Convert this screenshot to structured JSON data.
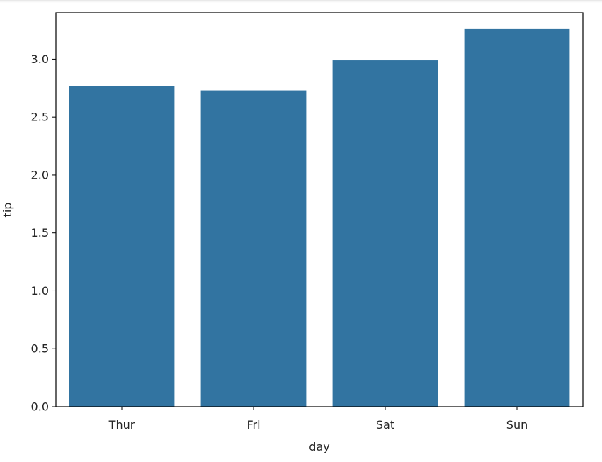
{
  "chart_data": {
    "type": "bar",
    "categories": [
      "Thur",
      "Fri",
      "Sat",
      "Sun"
    ],
    "values": [
      2.77,
      2.73,
      2.99,
      3.26
    ],
    "title": "",
    "xlabel": "day",
    "ylabel": "tip",
    "ylim": [
      0,
      3.4
    ],
    "yticks": [
      0.0,
      0.5,
      1.0,
      1.5,
      2.0,
      2.5,
      3.0
    ],
    "ytick_labels": [
      "0.0",
      "0.5",
      "1.0",
      "1.5",
      "2.0",
      "2.5",
      "3.0"
    ],
    "bar_color": "#3274a1",
    "grid": false,
    "legend": "none"
  }
}
